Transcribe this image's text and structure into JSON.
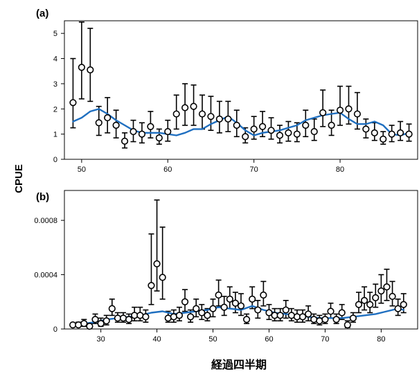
{
  "figure": {
    "ylabel": "CPUE",
    "xlabel": "経過四半期",
    "trend_color": "#1f6fc0",
    "point_color": "#000000"
  },
  "chart_data": [
    {
      "type": "scatter",
      "panel_label": "(a)",
      "xlim": [
        48,
        89
      ],
      "ylim": [
        0,
        5.5
      ],
      "xticks": [
        50,
        60,
        70,
        80
      ],
      "yticks": [
        0,
        1,
        2,
        3,
        4,
        5
      ],
      "ytick_labels": [
        "0",
        "1",
        "2",
        "3",
        "4",
        "5"
      ],
      "series": [
        {
          "kind": "points_with_error_bars",
          "x": [
            49,
            50,
            51,
            52,
            53,
            54,
            55,
            56,
            57,
            58,
            59,
            60,
            61,
            62,
            63,
            64,
            65,
            66,
            67,
            68,
            69,
            70,
            71,
            72,
            73,
            74,
            75,
            76,
            77,
            78,
            79,
            80,
            81,
            82,
            83,
            84,
            85,
            86,
            87,
            88
          ],
          "y": [
            2.25,
            3.65,
            3.55,
            1.45,
            1.65,
            1.35,
            0.72,
            1.1,
            1.0,
            1.3,
            0.85,
            1.1,
            1.8,
            2.05,
            2.1,
            1.8,
            1.7,
            1.6,
            1.6,
            1.35,
            0.9,
            1.2,
            1.3,
            1.15,
            0.95,
            1.05,
            1.0,
            1.35,
            1.1,
            1.85,
            1.35,
            1.95,
            2.0,
            1.8,
            1.2,
            1.05,
            0.8,
            1.0,
            1.05,
            1.0
          ],
          "lower": [
            1.25,
            2.4,
            2.3,
            0.95,
            1.05,
            0.85,
            0.45,
            0.7,
            0.65,
            0.85,
            0.6,
            0.72,
            1.2,
            1.35,
            1.35,
            1.2,
            1.15,
            1.05,
            1.1,
            0.9,
            0.65,
            0.8,
            0.9,
            0.8,
            0.65,
            0.72,
            0.7,
            0.9,
            0.75,
            1.3,
            0.95,
            1.35,
            1.4,
            1.2,
            0.85,
            0.75,
            0.6,
            0.7,
            0.75,
            0.72
          ],
          "upper": [
            4.0,
            5.45,
            5.2,
            2.1,
            2.45,
            1.95,
            1.05,
            1.55,
            1.45,
            1.9,
            1.2,
            1.55,
            2.55,
            3.0,
            2.95,
            2.55,
            2.5,
            2.3,
            2.3,
            1.95,
            1.25,
            1.7,
            1.9,
            1.65,
            1.35,
            1.5,
            1.45,
            1.95,
            1.6,
            2.75,
            1.95,
            2.9,
            2.9,
            2.65,
            1.6,
            1.45,
            1.1,
            1.35,
            1.5,
            1.4
          ]
        },
        {
          "kind": "trend_line",
          "x": [
            49,
            50,
            51,
            52,
            53,
            54,
            55,
            56,
            57,
            58,
            59,
            60,
            61,
            62,
            63,
            64,
            65,
            66,
            67,
            68,
            69,
            70,
            71,
            72,
            73,
            74,
            75,
            76,
            77,
            78,
            79,
            80,
            81,
            82,
            83,
            84,
            85,
            86,
            87,
            88
          ],
          "y": [
            1.5,
            1.65,
            1.9,
            2.0,
            1.8,
            1.55,
            1.35,
            1.15,
            1.05,
            1.05,
            1.05,
            1.0,
            0.95,
            1.05,
            1.2,
            1.2,
            1.4,
            1.55,
            1.7,
            1.45,
            1.15,
            0.95,
            1.05,
            1.1,
            1.15,
            1.25,
            1.35,
            1.55,
            1.65,
            1.75,
            1.8,
            1.85,
            1.6,
            1.4,
            1.4,
            1.5,
            1.35,
            1.0,
            0.95,
            1.05
          ]
        }
      ]
    },
    {
      "type": "scatter",
      "panel_label": "(b)",
      "xlim": [
        23.5,
        86.5
      ],
      "ylim": [
        0,
        0.00102
      ],
      "xticks": [
        30,
        40,
        50,
        60,
        70,
        80
      ],
      "yticks": [
        0,
        0.0004,
        0.0008
      ],
      "ytick_labels": [
        "0",
        "0.0004",
        "0.0008"
      ],
      "series": [
        {
          "kind": "points_with_error_bars",
          "x": [
            25,
            26,
            27,
            28,
            29,
            30,
            31,
            32,
            33,
            34,
            35,
            36,
            37,
            38,
            39,
            40,
            41,
            42,
            43,
            44,
            45,
            46,
            47,
            48,
            49,
            50,
            51,
            52,
            53,
            54,
            55,
            56,
            57,
            58,
            59,
            60,
            61,
            62,
            63,
            64,
            65,
            66,
            67,
            68,
            69,
            70,
            71,
            72,
            73,
            74,
            75,
            76,
            77,
            78,
            79,
            80,
            81,
            82,
            83,
            84
          ],
          "y": [
            3e-05,
            3e-05,
            4e-05,
            2e-05,
            7e-05,
            4e-05,
            6e-05,
            0.00015,
            8e-05,
            8e-05,
            7e-05,
            0.0001,
            0.0001,
            9e-05,
            0.00032,
            0.00048,
            0.00038,
            8e-05,
            9e-05,
            0.0001,
            0.0002,
            9e-05,
            0.00015,
            0.00012,
            0.0001,
            0.00015,
            0.00025,
            0.00016,
            0.00022,
            0.00019,
            0.00017,
            7e-05,
            0.00022,
            0.00014,
            0.00025,
            0.00012,
            0.0001,
            0.0001,
            0.00014,
            0.0001,
            9e-05,
            9e-05,
            0.00011,
            7e-05,
            6e-05,
            7e-05,
            0.00013,
            7e-05,
            0.00012,
            3e-05,
            8e-05,
            0.00018,
            0.00021,
            0.00018,
            0.00023,
            0.00028,
            0.00031,
            0.00024,
            0.00015,
            0.00018
          ],
          "lower": [
            2e-05,
            2e-05,
            2e-05,
            1e-05,
            4e-05,
            2e-05,
            3e-05,
            0.0001,
            5e-05,
            5e-05,
            4e-05,
            6e-05,
            6e-05,
            5e-05,
            0.00018,
            0.00028,
            0.00022,
            5e-05,
            5e-05,
            6e-05,
            0.00013,
            5e-05,
            9e-05,
            7e-05,
            6e-05,
            9e-05,
            0.00017,
            0.0001,
            0.00015,
            0.00012,
            0.0001,
            4e-05,
            0.00015,
            8e-05,
            0.00017,
            7e-05,
            6e-05,
            6e-05,
            8e-05,
            6e-05,
            5e-05,
            5e-05,
            6e-05,
            4e-05,
            3e-05,
            4e-05,
            8e-05,
            4e-05,
            7e-05,
            1e-05,
            5e-05,
            0.00012,
            0.00014,
            0.00012,
            0.00016,
            0.00019,
            0.00021,
            0.00017,
            0.0001,
            0.00012
          ],
          "upper": [
            4e-05,
            5e-05,
            7e-05,
            4e-05,
            0.00011,
            8e-05,
            0.0001,
            0.00022,
            0.00012,
            0.00012,
            0.00011,
            0.00016,
            0.00016,
            0.00014,
            0.0007,
            0.00095,
            0.00075,
            0.00013,
            0.00014,
            0.00016,
            0.00029,
            0.00014,
            0.00022,
            0.00018,
            0.00015,
            0.00022,
            0.00036,
            0.00024,
            0.00031,
            0.00027,
            0.00026,
            0.00011,
            0.00031,
            0.00021,
            0.00035,
            0.00018,
            0.00015,
            0.00015,
            0.00021,
            0.00015,
            0.00014,
            0.00014,
            0.00017,
            0.00011,
            0.0001,
            0.00011,
            0.00019,
            0.00011,
            0.00018,
            6e-05,
            0.00012,
            0.00027,
            0.00031,
            0.00027,
            0.00033,
            0.0004,
            0.00044,
            0.00035,
            0.00022,
            0.00026
          ]
        },
        {
          "kind": "trend_line",
          "x": [
            25,
            27,
            29,
            31,
            33,
            35,
            37,
            39,
            41,
            43,
            45,
            47,
            49,
            51,
            53,
            55,
            57,
            59,
            61,
            63,
            65,
            67,
            69,
            71,
            73,
            75,
            77,
            79,
            81,
            83,
            84
          ],
          "y": [
            3e-05,
            4e-05,
            5e-05,
            7e-05,
            8e-05,
            9e-05,
            0.0001,
            0.00012,
            0.00013,
            0.00011,
            0.00012,
            0.00013,
            0.00014,
            0.00016,
            0.00015,
            0.00014,
            0.00017,
            0.00014,
            0.00012,
            0.00011,
            0.0001,
            9e-05,
            8e-05,
            8e-05,
            8e-05,
            9e-05,
            0.0001,
            0.00011,
            0.00013,
            0.00015,
            0.00014
          ]
        }
      ]
    }
  ]
}
